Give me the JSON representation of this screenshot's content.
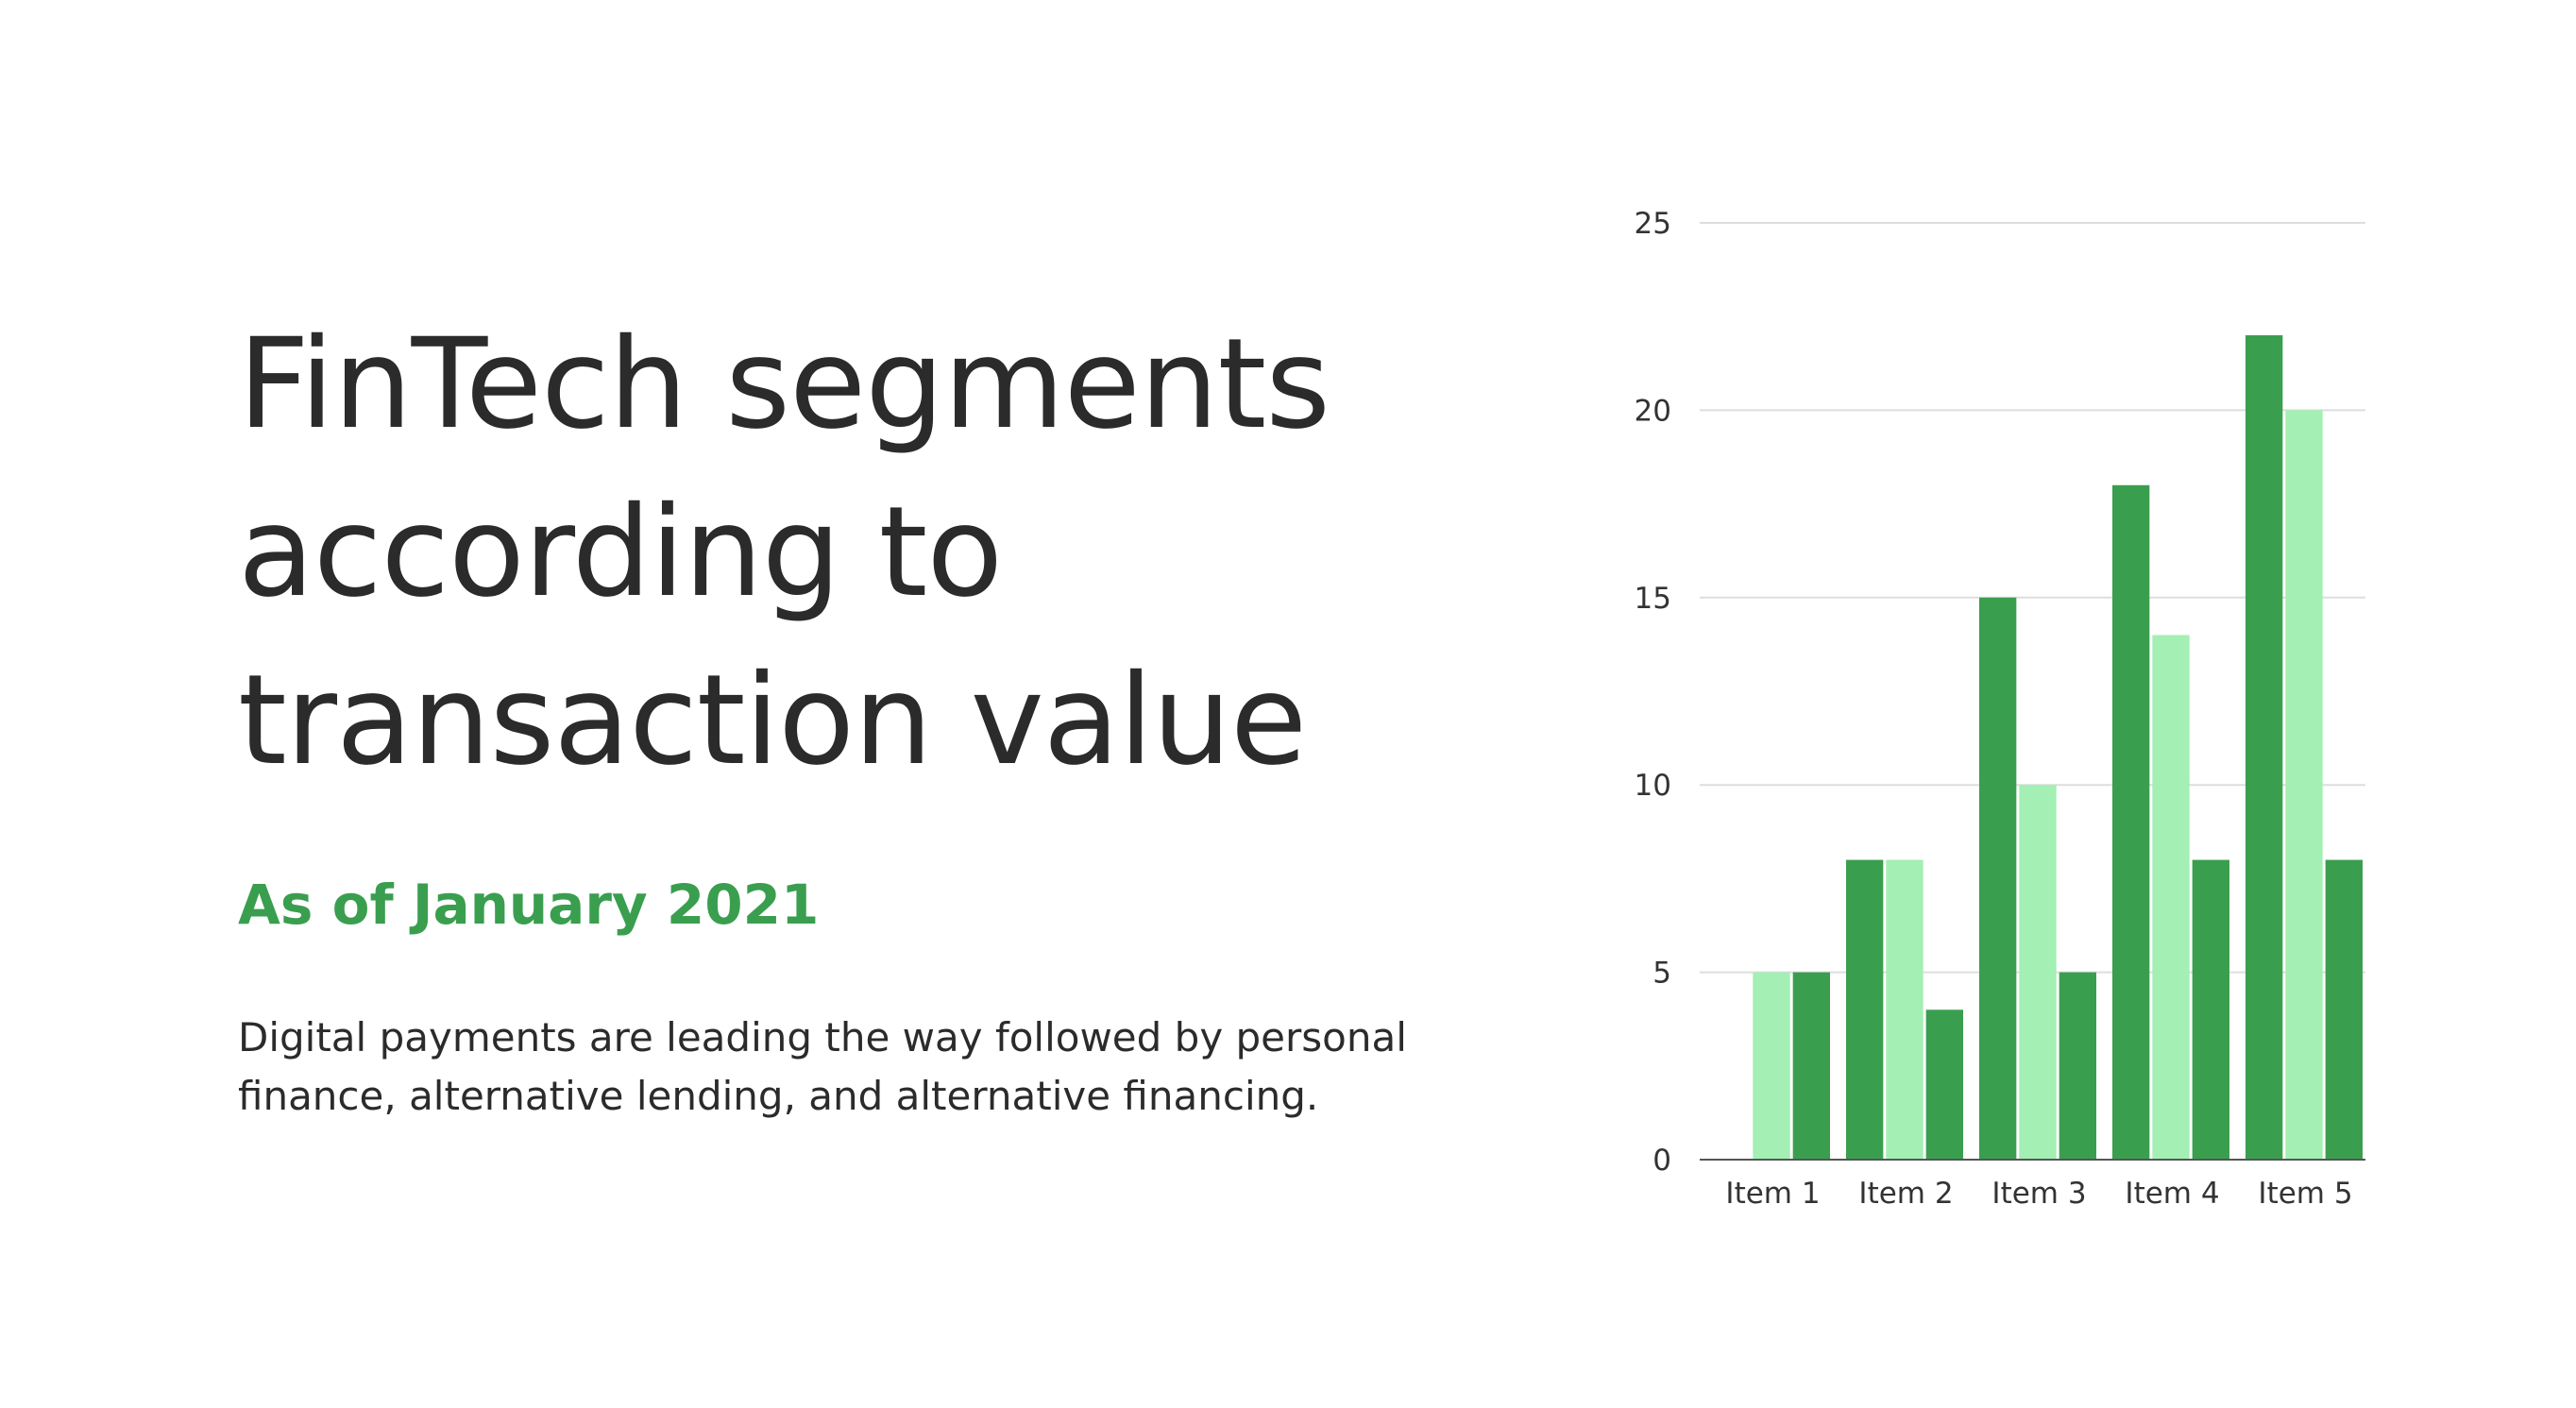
{
  "heading": {
    "title": "FinTech segments according to transaction value",
    "subtitle": "As of January 2021",
    "description": "Digital payments are leading the way followed by personal finance, alternative lending, and alternative financing."
  },
  "colors": {
    "dark_green": "#3a9e4f",
    "light_green": "#a3efb4",
    "subtitle_green": "#3a9e4f",
    "text": "#2b2b2b",
    "grid": "#dddddd"
  },
  "chart_data": {
    "type": "bar",
    "categories": [
      "Item 1",
      "Item 2",
      "Item 3",
      "Item 4",
      "Item 5"
    ],
    "series": [
      {
        "values": [
          0,
          8,
          15,
          18,
          22
        ],
        "color": "#3a9e4f"
      },
      {
        "values": [
          5,
          8,
          10,
          14,
          20
        ],
        "color": "#a3efb4"
      },
      {
        "values": [
          5,
          4,
          5,
          8,
          8
        ],
        "color": "#3a9e4f"
      }
    ],
    "yticks": [
      0,
      5,
      10,
      15,
      20,
      25
    ],
    "ylim": [
      0,
      25
    ],
    "grid": true,
    "legend": "none",
    "title": "",
    "xlabel": "",
    "ylabel": ""
  }
}
